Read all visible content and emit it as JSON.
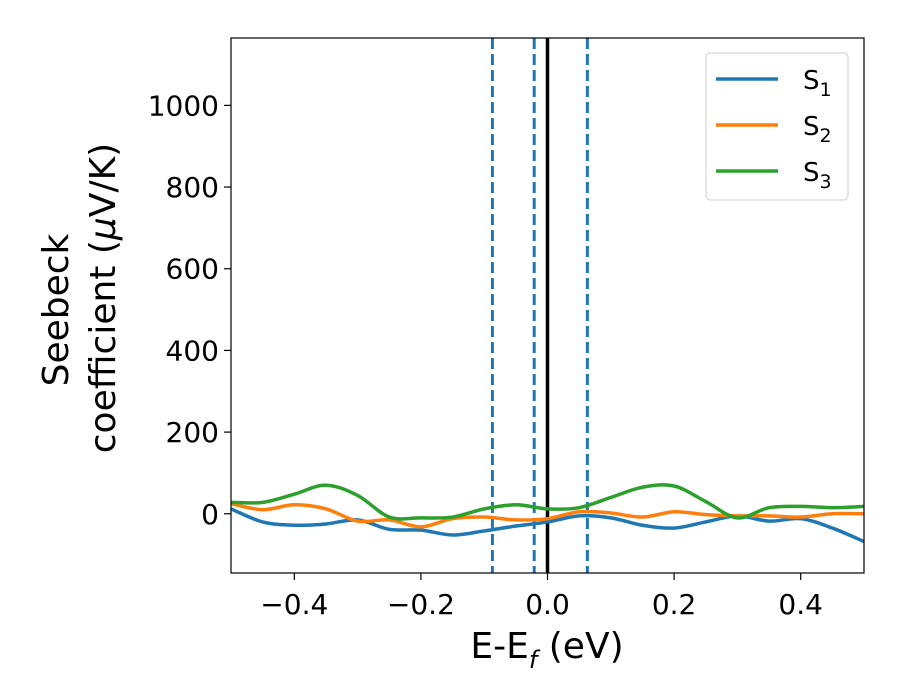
{
  "chart_data": {
    "type": "line",
    "xlabel_main": "E-E",
    "xlabel_sub": "f",
    "xlabel_unit": " (eV)",
    "ylabel_line1": "Seebeck",
    "ylabel_line2_text": "coefficient  (",
    "ylabel_line2_mu": "μ",
    "ylabel_line2_unit": "V/K)",
    "xlim": [
      -0.5,
      0.5
    ],
    "ylim": [
      -145,
      1165
    ],
    "xticks": [
      -0.4,
      -0.2,
      0.0,
      0.2,
      0.4
    ],
    "xtick_labels": [
      "−0.4",
      "−0.2",
      "0.0",
      "0.2",
      "0.4"
    ],
    "yticks": [
      0,
      200,
      400,
      600,
      800,
      1000
    ],
    "ytick_labels": [
      "0",
      "200",
      "400",
      "600",
      "800",
      "1000"
    ],
    "grid": false,
    "legend_position": "top-right",
    "vertical_lines": [
      {
        "x": -0.087,
        "style": "dashed",
        "color": "#1f77b4"
      },
      {
        "x": -0.021,
        "style": "dashed",
        "color": "#1f77b4"
      },
      {
        "x": 0.0,
        "style": "solid",
        "color": "#000000"
      },
      {
        "x": 0.063,
        "style": "dashed",
        "color": "#1f77b4"
      }
    ],
    "series": [
      {
        "name": "S",
        "sub": "1",
        "color": "#1f77b4",
        "x": [
          -0.5,
          -0.45,
          -0.4,
          -0.35,
          -0.3,
          -0.25,
          -0.2,
          -0.15,
          -0.1,
          -0.05,
          0.0,
          0.05,
          0.1,
          0.15,
          0.2,
          0.25,
          0.3,
          0.35,
          0.4,
          0.45,
          0.5
        ],
        "y": [
          12,
          -20,
          -28,
          -25,
          -15,
          -38,
          -40,
          -52,
          -42,
          -30,
          -20,
          -5,
          -10,
          -28,
          -35,
          -20,
          -5,
          -18,
          -12,
          -35,
          -68
        ]
      },
      {
        "name": "S",
        "sub": "2",
        "color": "#ff7f0e",
        "x": [
          -0.5,
          -0.45,
          -0.4,
          -0.35,
          -0.3,
          -0.25,
          -0.2,
          -0.15,
          -0.1,
          -0.05,
          0.0,
          0.05,
          0.1,
          0.15,
          0.2,
          0.25,
          0.3,
          0.35,
          0.4,
          0.45,
          0.5
        ],
        "y": [
          25,
          10,
          22,
          12,
          -18,
          -15,
          -32,
          -12,
          -8,
          -15,
          -12,
          5,
          2,
          -8,
          5,
          -2,
          -5,
          -5,
          -8,
          0,
          0
        ]
      },
      {
        "name": "S",
        "sub": "3",
        "color": "#2ca02c",
        "x": [
          -0.5,
          -0.45,
          -0.4,
          -0.35,
          -0.3,
          -0.25,
          -0.2,
          -0.15,
          -0.1,
          -0.05,
          0.0,
          0.05,
          0.1,
          0.15,
          0.2,
          0.25,
          0.3,
          0.35,
          0.4,
          0.45,
          0.5
        ],
        "y": [
          28,
          28,
          48,
          70,
          45,
          -8,
          -10,
          -8,
          12,
          22,
          12,
          15,
          40,
          65,
          68,
          30,
          -10,
          15,
          18,
          15,
          18
        ]
      }
    ]
  }
}
